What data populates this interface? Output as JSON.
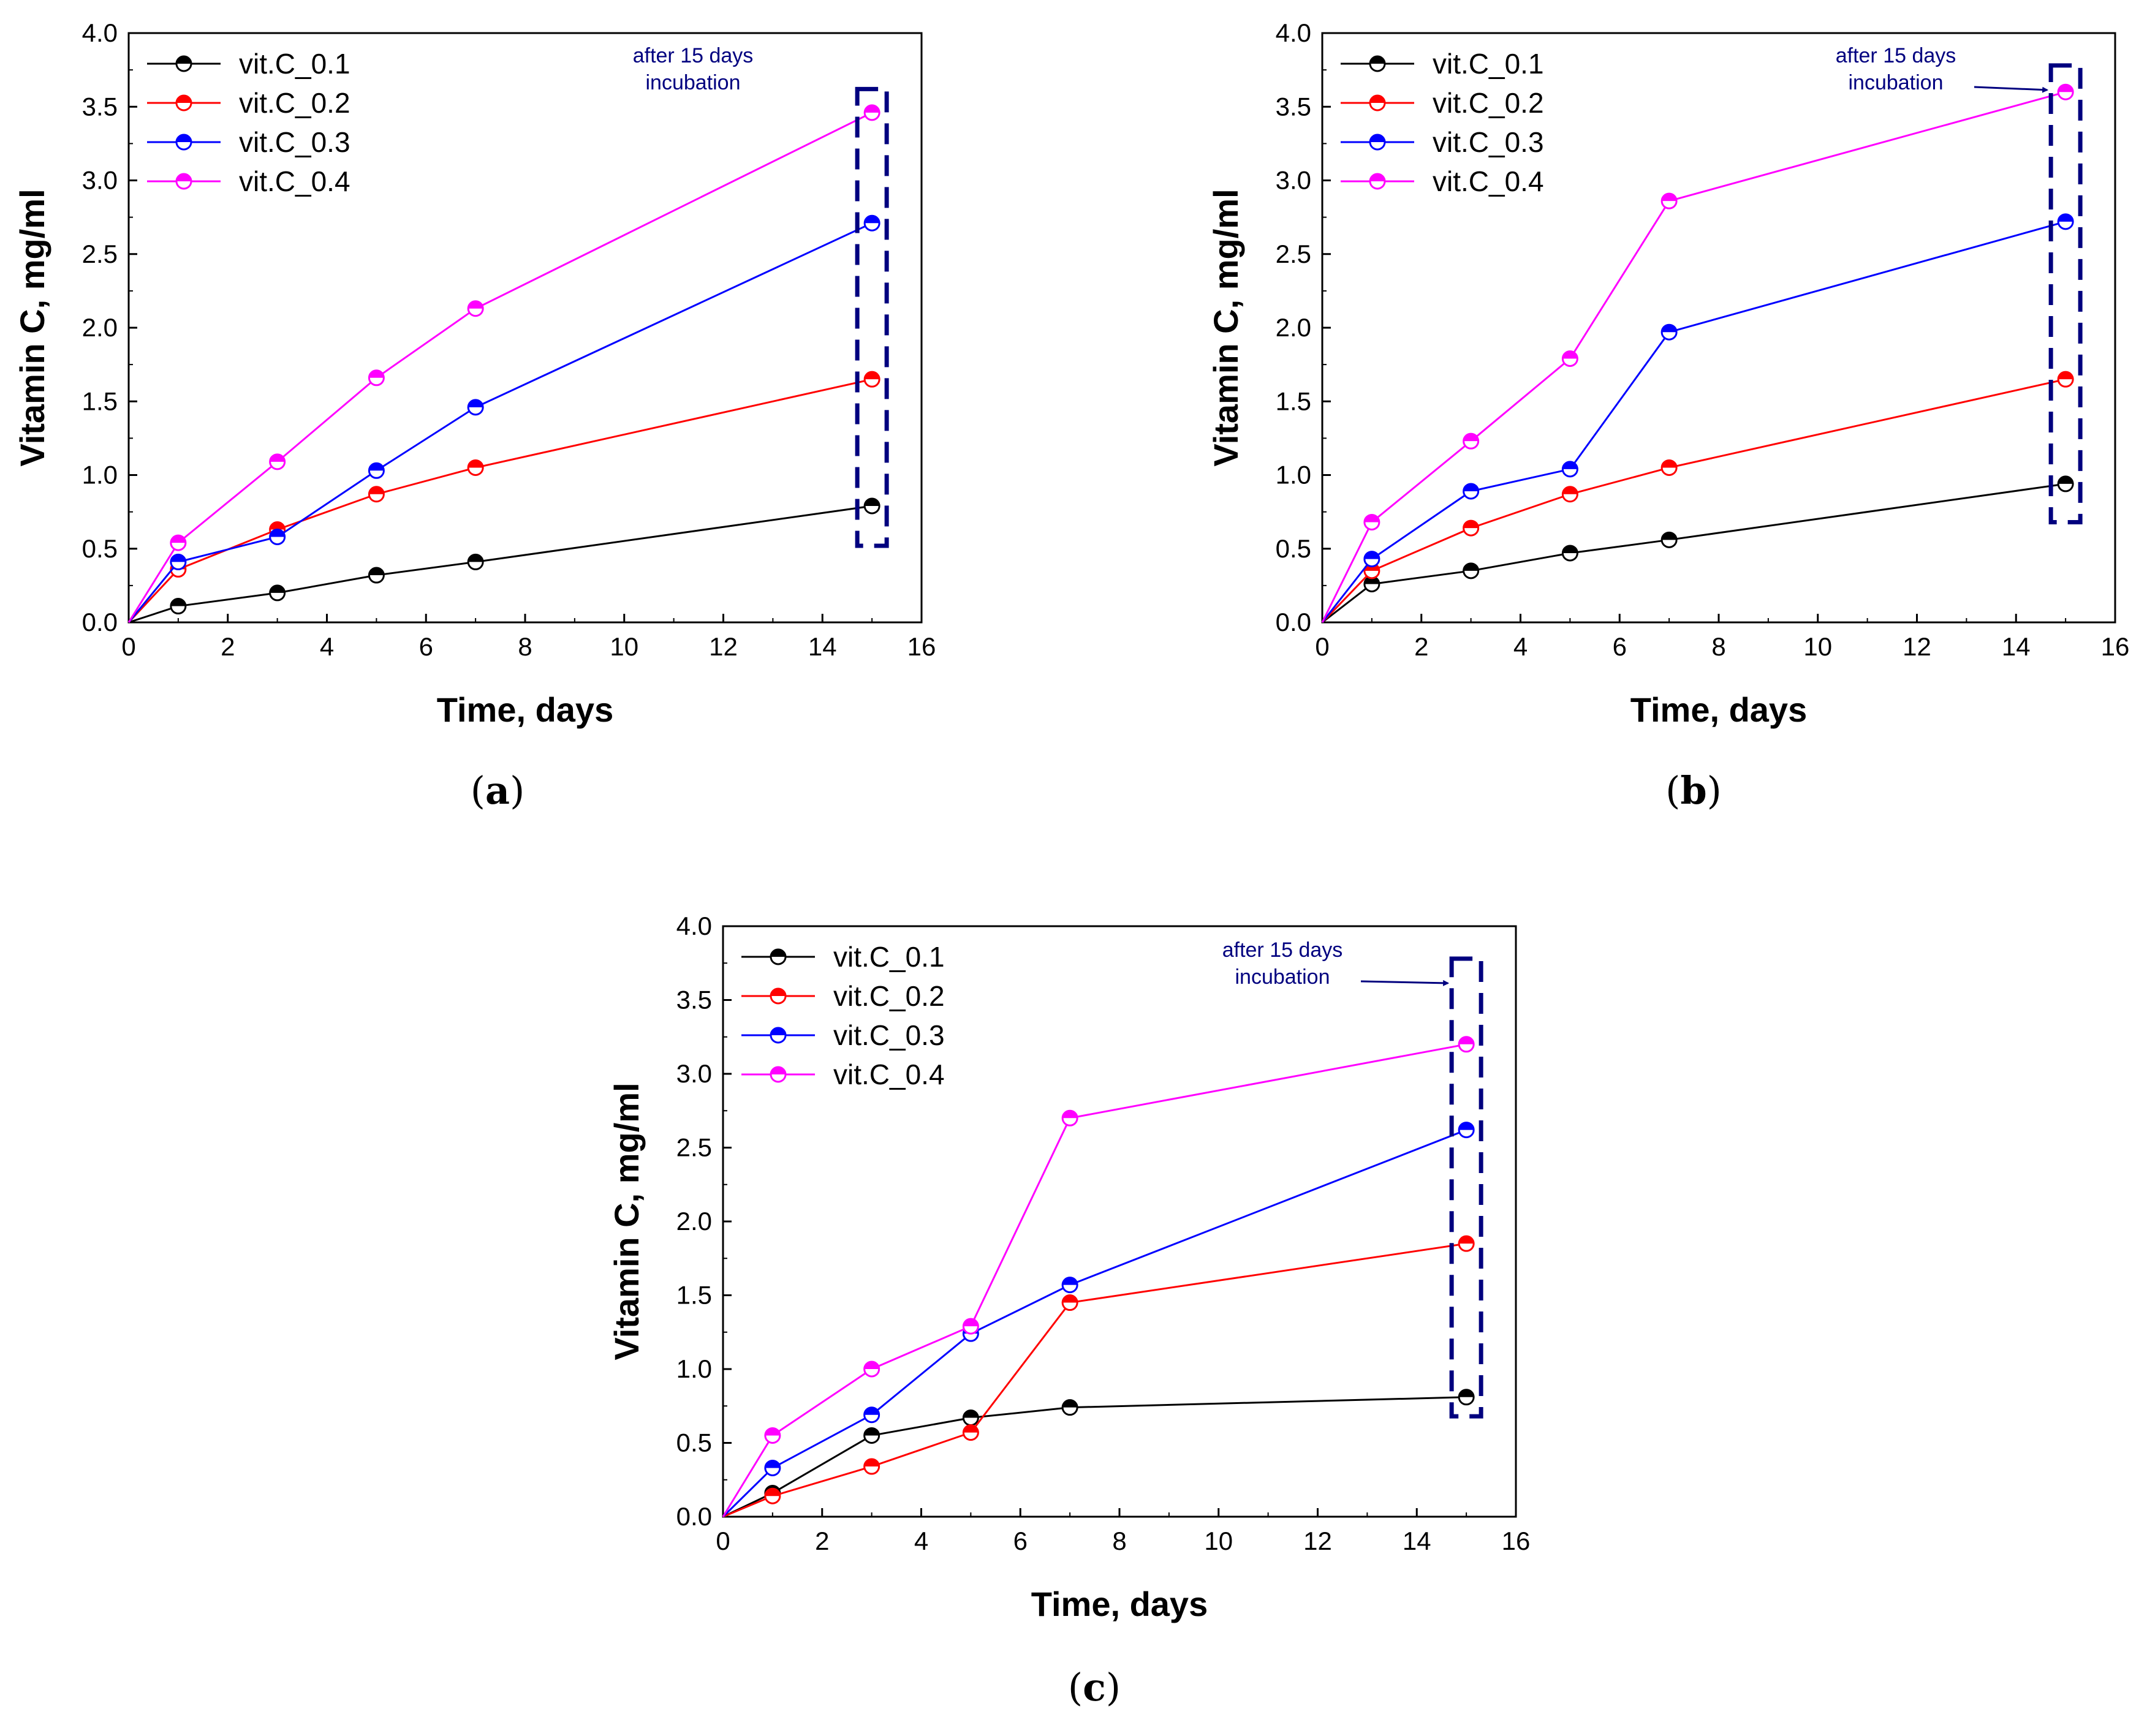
{
  "chart_data": [
    {
      "type": "line",
      "panel_label": "(a)",
      "caption_letter": "a",
      "xlabel": "Time, days",
      "ylabel": "Vitamin C, mg/ml",
      "xlim": [
        0,
        16
      ],
      "ylim": [
        0,
        4.0
      ],
      "xticks": [
        "0",
        "2",
        "4",
        "6",
        "8",
        "10",
        "12",
        "14",
        "16"
      ],
      "yticks": [
        "0.0",
        "0.5",
        "1.0",
        "1.5",
        "2.0",
        "2.5",
        "3.0",
        "3.5",
        "4.0"
      ],
      "x": [
        0,
        1,
        3,
        5,
        7,
        15
      ],
      "series": [
        {
          "name": "vit.C_0.1",
          "color": "#000000",
          "values": [
            0,
            0.11,
            0.2,
            0.32,
            0.41,
            0.79
          ]
        },
        {
          "name": "vit.C_0.2",
          "color": "#ff0000",
          "values": [
            0,
            0.36,
            0.63,
            0.87,
            1.05,
            1.65
          ]
        },
        {
          "name": "vit.C_0.3",
          "color": "#0000ff",
          "values": [
            0,
            0.41,
            0.58,
            1.03,
            1.46,
            2.71
          ]
        },
        {
          "name": "vit.C_0.4",
          "color": "#ff00ff",
          "values": [
            0,
            0.54,
            1.09,
            1.66,
            2.13,
            3.46
          ]
        }
      ],
      "annotation": {
        "lines": [
          "after 15 days",
          "incubation"
        ],
        "box_x": 15,
        "box_y_range": [
          0.52,
          3.62
        ],
        "arrow": false
      },
      "legend": "top-left"
    },
    {
      "type": "line",
      "panel_label": "(b)",
      "caption_letter": "b",
      "xlabel": "Time, days",
      "ylabel": "Vitamin C, mg/ml",
      "xlim": [
        0,
        16
      ],
      "ylim": [
        0,
        4.0
      ],
      "xticks": [
        "0",
        "2",
        "4",
        "6",
        "8",
        "10",
        "12",
        "14",
        "16"
      ],
      "yticks": [
        "0.0",
        "0.5",
        "1.0",
        "1.5",
        "2.0",
        "2.5",
        "3.0",
        "3.5",
        "4.0"
      ],
      "x": [
        0,
        1,
        3,
        5,
        7,
        15
      ],
      "series": [
        {
          "name": "vit.C_0.1",
          "color": "#000000",
          "values": [
            0,
            0.26,
            0.35,
            0.47,
            0.56,
            0.94
          ]
        },
        {
          "name": "vit.C_0.2",
          "color": "#ff0000",
          "values": [
            0,
            0.35,
            0.64,
            0.87,
            1.05,
            1.65
          ]
        },
        {
          "name": "vit.C_0.3",
          "color": "#0000ff",
          "values": [
            0,
            0.43,
            0.89,
            1.04,
            1.97,
            2.72
          ]
        },
        {
          "name": "vit.C_0.4",
          "color": "#ff00ff",
          "values": [
            0,
            0.68,
            1.23,
            1.79,
            2.86,
            3.6
          ]
        }
      ],
      "annotation": {
        "lines": [
          "after 15 days",
          "incubation"
        ],
        "box_x": 15,
        "box_y_range": [
          0.68,
          3.78
        ],
        "arrow": true
      },
      "legend": "top-left"
    },
    {
      "type": "line",
      "panel_label": "(c)",
      "caption_letter": "c",
      "xlabel": "Time, days",
      "ylabel": "Vitamin C, mg/ml",
      "xlim": [
        0,
        16
      ],
      "ylim": [
        0,
        4.0
      ],
      "xticks": [
        "0",
        "2",
        "4",
        "6",
        "8",
        "10",
        "12",
        "14",
        "16"
      ],
      "yticks": [
        "0.0",
        "0.5",
        "1.0",
        "1.5",
        "2.0",
        "2.5",
        "3.0",
        "3.5",
        "4.0"
      ],
      "x": [
        0,
        1,
        3,
        5,
        7,
        15
      ],
      "series": [
        {
          "name": "vit.C_0.1",
          "color": "#000000",
          "values": [
            0,
            0.16,
            0.55,
            0.67,
            0.74,
            0.81
          ]
        },
        {
          "name": "vit.C_0.2",
          "color": "#ff0000",
          "values": [
            0,
            0.14,
            0.34,
            0.57,
            1.45,
            1.85
          ]
        },
        {
          "name": "vit.C_0.3",
          "color": "#0000ff",
          "values": [
            0,
            0.33,
            0.69,
            1.24,
            1.57,
            2.62
          ]
        },
        {
          "name": "vit.C_0.4",
          "color": "#ff00ff",
          "values": [
            0,
            0.55,
            1.0,
            1.29,
            2.7,
            3.2
          ]
        }
      ],
      "annotation": {
        "lines": [
          "after 15 days",
          "incubation"
        ],
        "box_x": 15,
        "box_y_range": [
          0.68,
          3.78
        ],
        "arrow": true
      },
      "legend": "top-left"
    }
  ],
  "colors": {
    "annotation": "#00007f",
    "axis": "#000000"
  }
}
